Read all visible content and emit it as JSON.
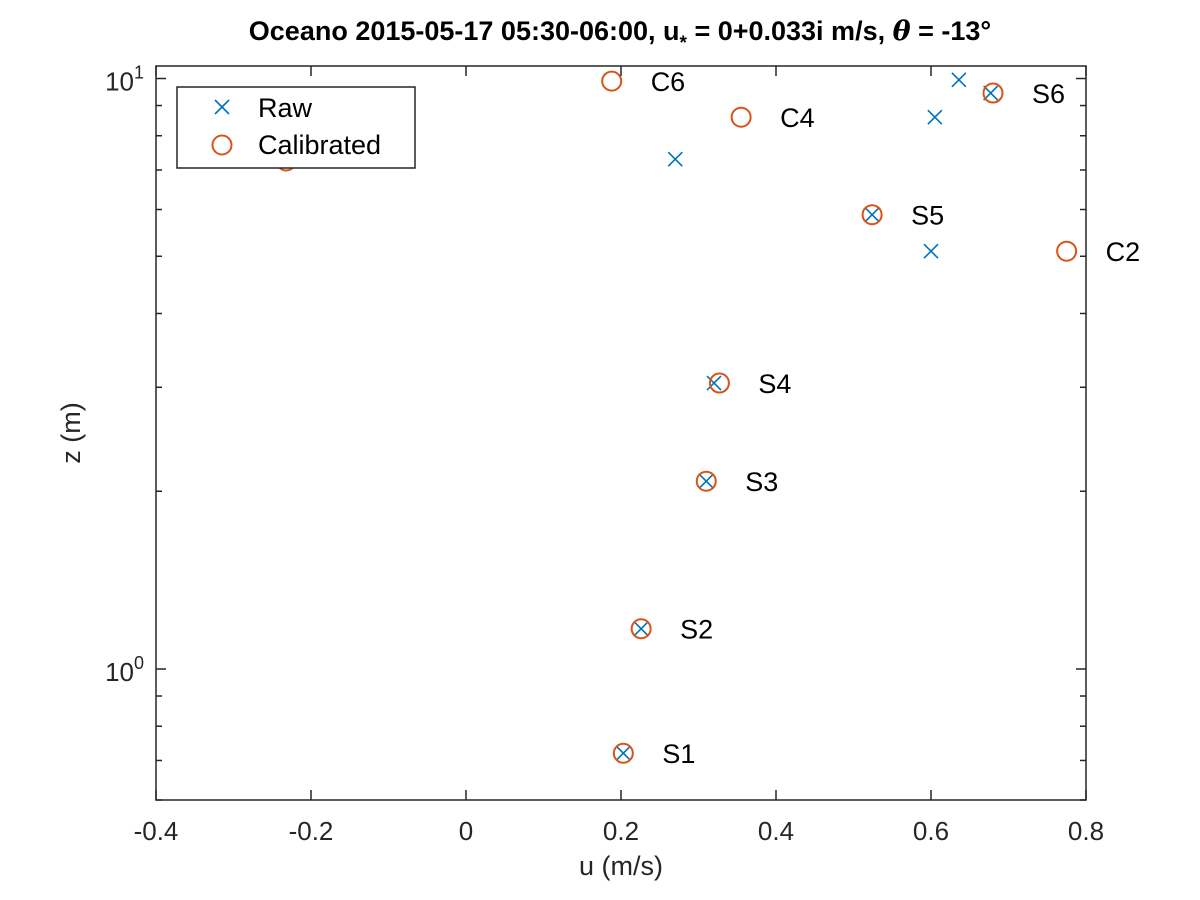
{
  "chart_data": {
    "type": "scatter",
    "title": {
      "prefix": "Oceano 2015-05-17 05:30-06:00, u",
      "subscript": "*",
      "middle": " = 0+0.033i m/s, ",
      "theta": "θ",
      "suffix": " = -13°"
    },
    "xlabel": "u (m/s)",
    "ylabel": "z (m)",
    "xlim": [
      -0.4,
      0.8
    ],
    "ylim": [
      0.6,
      10.5
    ],
    "yscale": "log",
    "xticks": [
      -0.4,
      -0.2,
      0,
      0.2,
      0.4,
      0.6,
      0.8
    ],
    "xtick_labels": [
      "-0.4",
      "-0.2",
      "0",
      "0.2",
      "0.4",
      "0.6",
      "0.8"
    ],
    "yticks": [
      {
        "base": "10",
        "exp": "0",
        "value": 1
      },
      {
        "base": "10",
        "exp": "1",
        "value": 10
      }
    ],
    "legend": {
      "location": "top-left"
    },
    "series": [
      {
        "name": "Raw",
        "marker": "x",
        "color": "#0072BD",
        "points": [
          {
            "x": 0.203,
            "y": 0.72
          },
          {
            "x": 0.226,
            "y": 1.17
          },
          {
            "x": 0.31,
            "y": 2.08
          },
          {
            "x": 0.32,
            "y": 3.05
          },
          {
            "x": 0.524,
            "y": 5.88
          },
          {
            "x": 0.6,
            "y": 5.1
          },
          {
            "x": 0.27,
            "y": 7.3
          },
          {
            "x": 0.605,
            "y": 8.6
          },
          {
            "x": 0.636,
            "y": 9.95
          },
          {
            "x": 0.677,
            "y": 9.45
          }
        ]
      },
      {
        "name": "Calibrated",
        "marker": "o",
        "color": "#D95319",
        "points": [
          {
            "x": 0.203,
            "y": 0.72,
            "label": "S1"
          },
          {
            "x": 0.226,
            "y": 1.17,
            "label": "S2"
          },
          {
            "x": 0.31,
            "y": 2.08,
            "label": "S3"
          },
          {
            "x": 0.327,
            "y": 3.05,
            "label": "S4"
          },
          {
            "x": 0.524,
            "y": 5.88,
            "label": "S5"
          },
          {
            "x": 0.68,
            "y": 9.45,
            "label": "S6"
          },
          {
            "x": 0.775,
            "y": 5.1,
            "label": "C2"
          },
          {
            "x": 0.355,
            "y": 8.6,
            "label": "C4"
          },
          {
            "x": 0.188,
            "y": 9.9,
            "label": "C6"
          },
          {
            "x": -0.232,
            "y": 7.25,
            "label": ""
          }
        ]
      }
    ]
  }
}
